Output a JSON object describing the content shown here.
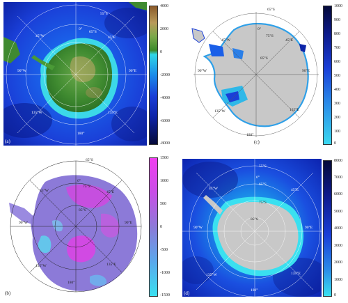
{
  "panels": {
    "a": {
      "label": "(a)",
      "colorbar_ticks": [
        "4000",
        "2000",
        "0",
        "-2000",
        "-4000",
        "-6000",
        "-8000"
      ],
      "grid_labels": {
        "lat_outer": "55°S",
        "lat_inner": "65°S",
        "lon_0": "0°",
        "lon_45w": "45°W",
        "lon_45e": "45°E",
        "lon_90w": "90°W",
        "lon_90e": "90°E",
        "lon_135w": "135°W",
        "lon_135e": "135°E",
        "lon_180": "180°"
      }
    },
    "b": {
      "label": "(b)",
      "colorbar_ticks": [
        "1500",
        "1000",
        "500",
        "0",
        "-500",
        "-1000",
        "-1500"
      ],
      "grid_labels": {
        "lat_outer": "65°S",
        "lat_mid": "75°S",
        "lat_inner": "85°S",
        "lon_0": "0°",
        "lon_45w": "45°W",
        "lon_45e": "45°E",
        "lon_90w": "90°W",
        "lon_90e": "90°E",
        "lon_135w": "135°W",
        "lon_135e": "135°E",
        "lon_180": "180°"
      }
    },
    "c": {
      "label": "(c)",
      "colorbar_ticks": [
        "1000",
        "900",
        "800",
        "700",
        "600",
        "500",
        "400",
        "300",
        "200",
        "100",
        "0"
      ],
      "grid_labels": {
        "lat_outer": "65°S",
        "lat_mid": "75°S",
        "lat_inner": "85°S",
        "lon_0": "0°",
        "lon_45w": "45°W",
        "lon_45e": "45°E",
        "lon_90w": "90°W",
        "lon_90e": "90°E",
        "lon_135w": "135°W",
        "lon_135e": "135°E",
        "lon_180": "180°"
      }
    },
    "d": {
      "label": "(d)",
      "colorbar_ticks": [
        "8000",
        "7000",
        "6000",
        "5000",
        "4000",
        "3000",
        "2000",
        "1000",
        "0"
      ],
      "grid_labels": {
        "lat_outer": "55°S",
        "lat_mid": "65°S",
        "lat_mid2": "75°S",
        "lat_inner": "85°S",
        "lon_0": "0°",
        "lon_45w": "45°W",
        "lon_45e": "45°E",
        "lon_90w": "90°W",
        "lon_90e": "90°E",
        "lon_135w": "135°W",
        "lon_135e": "135°E",
        "lon_180": "180°"
      }
    }
  },
  "colors": {
    "ocean_deep": "#0a1f9e",
    "ocean_mid": "#1a3fe0",
    "shelf": "#2fd6e6",
    "land_green": "#3a8a2a",
    "land_brown": "#b89a5a",
    "ice_gray": "#c8c8c8",
    "diff_purple": "#8c7ad8",
    "diff_magenta": "#e23ee6",
    "diff_cyan": "#5ad8f0",
    "cb_dark": "#050a3a"
  }
}
